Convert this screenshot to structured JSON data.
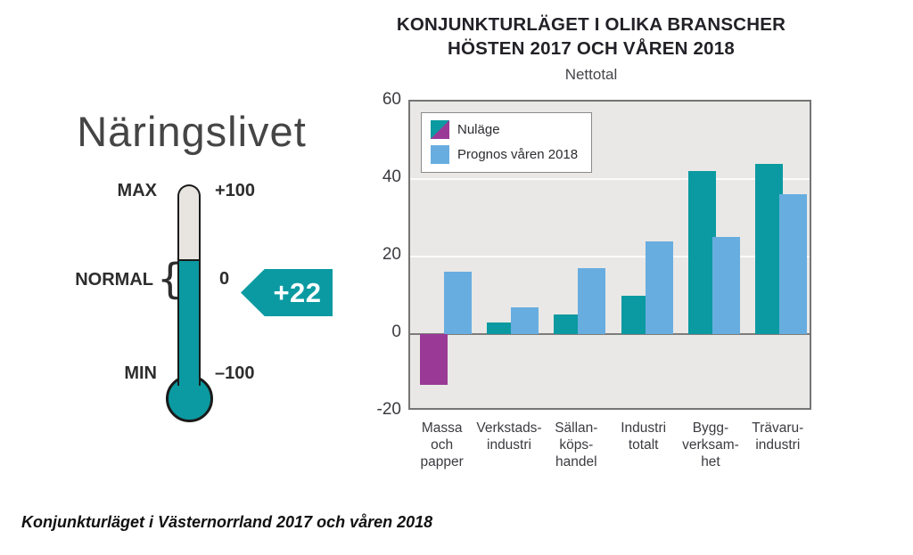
{
  "caption": "Konjunkturläget i Västernorrland 2017 och våren 2018",
  "colors": {
    "teal": "#0b9aa1",
    "purple": "#9a3a96",
    "blue": "#68ade0",
    "plot_bg": "#e9e8e6",
    "gridline": "#fbfbfa",
    "axis_frame": "#757575",
    "outline": "#1b1b1b"
  },
  "thermometer": {
    "title": "Näringslivet",
    "max_label": "MAX",
    "max_value": "+100",
    "normal_label": "NORMAL",
    "normal_brace": "{",
    "normal_value": "0",
    "min_label": "MIN",
    "min_value": "–100",
    "current_value": "+22",
    "scale_min": -100,
    "scale_max": 100,
    "current": 22
  },
  "chart": {
    "title_line1": "KONJUNKTURLÄGET I OLIKA BRANSCHER",
    "title_line2": "HÖSTEN 2017 OCH VÅREN 2018",
    "subtitle": "Nettotal",
    "legend": [
      {
        "label": "Nuläge",
        "swatch": "teal-purple-split"
      },
      {
        "label": "Prognos våren 2018",
        "swatch": "blue"
      }
    ]
  },
  "chart_data": {
    "type": "bar",
    "title": "KONJUNKTURLÄGET I OLIKA BRANSCHER HÖSTEN 2017 OCH VÅREN 2018",
    "subtitle": "Nettotal",
    "ylabel": "Nettotal",
    "xlabel": "",
    "categories": [
      "Massa och papper",
      "Verkstadsindustri",
      "Sällanköpshandel",
      "Industri totalt",
      "Byggverksamhet",
      "Trävaruindustri"
    ],
    "category_lines": [
      [
        "Massa",
        "och",
        "papper"
      ],
      [
        "Verkstads-",
        "industri"
      ],
      [
        "Sällan-",
        "köps-",
        "handel"
      ],
      [
        "Industri",
        "totalt"
      ],
      [
        "Bygg-",
        "verksam-",
        "het"
      ],
      [
        "Trävaru-",
        "industri"
      ]
    ],
    "series": [
      {
        "name": "Nuläge",
        "values": [
          -13,
          3,
          5,
          10,
          42,
          44
        ],
        "color_positive": "#0b9aa1",
        "color_negative": "#9a3a96"
      },
      {
        "name": "Prognos våren 2018",
        "values": [
          16,
          7,
          17,
          24,
          25,
          36
        ],
        "color": "#68ade0"
      }
    ],
    "ylim": [
      -20,
      60
    ],
    "yticks": [
      60,
      40,
      20,
      0,
      -20
    ],
    "grid": true,
    "legend_position": "top-left-inside"
  }
}
